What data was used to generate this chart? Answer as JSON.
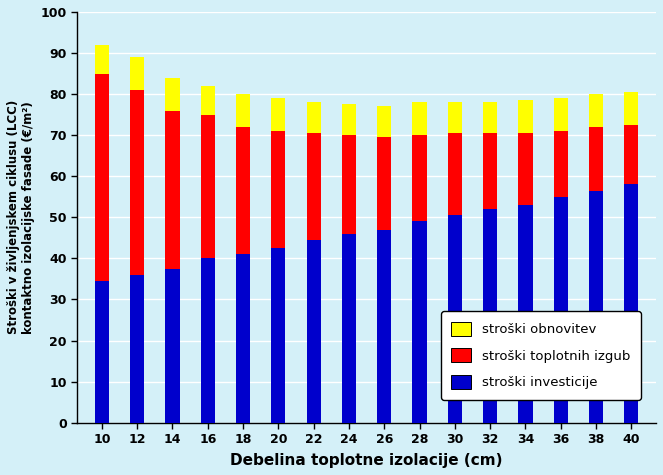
{
  "categories": [
    10,
    12,
    14,
    16,
    18,
    20,
    22,
    24,
    26,
    28,
    30,
    32,
    34,
    36,
    38,
    40
  ],
  "invest": [
    34.5,
    36.0,
    37.5,
    40.0,
    41.0,
    42.5,
    44.5,
    46.0,
    47.0,
    49.0,
    50.5,
    52.0,
    53.0,
    55.0,
    56.5,
    58.0
  ],
  "heat_loss": [
    50.5,
    45.0,
    38.5,
    35.0,
    31.0,
    28.5,
    26.0,
    24.0,
    22.5,
    21.0,
    20.0,
    18.5,
    17.5,
    16.0,
    15.5,
    14.5
  ],
  "renov": [
    7.0,
    8.0,
    8.0,
    7.0,
    8.0,
    8.0,
    7.5,
    7.5,
    7.5,
    8.0,
    7.5,
    7.5,
    8.0,
    8.0,
    8.0,
    8.0
  ],
  "color_invest": "#0000CC",
  "color_heat": "#FF0000",
  "color_renov": "#FFFF00",
  "ylabel": "Stroški v življenjskem ciklusu (LCC)\nkontaktno izolacijske fasade (€/m²)",
  "xlabel": "Debelina toplotne izolacije (cm)",
  "ylim": [
    0,
    100
  ],
  "yticks": [
    0,
    10,
    20,
    30,
    40,
    50,
    60,
    70,
    80,
    90,
    100
  ],
  "legend_labels": [
    "stroški obnovitev",
    "stroški toplotnih izgub",
    "stroški investicije"
  ],
  "background_color": "#D4F0F8",
  "grid_color": "#FFFFFF",
  "bar_width": 0.4,
  "legend_fontsize": 9.5,
  "axis_fontsize": 9,
  "xlabel_fontsize": 11,
  "ylabel_fontsize": 8.5
}
